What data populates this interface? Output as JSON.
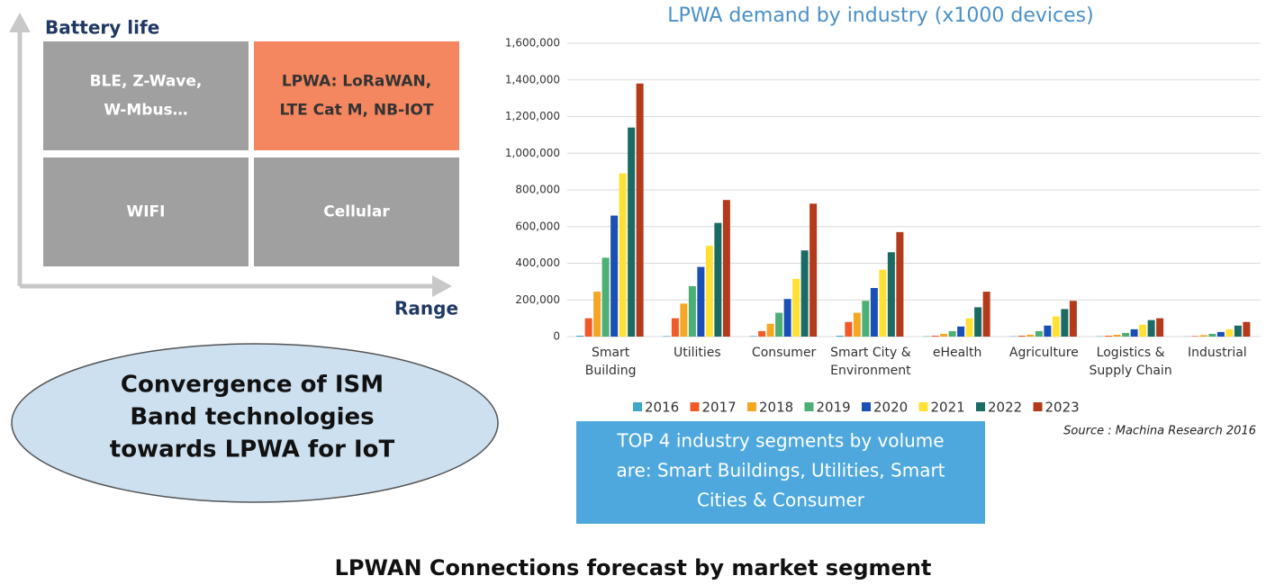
{
  "diagram": {
    "y_axis_label": "Battery life",
    "x_axis_label": "Range",
    "quadrants": [
      {
        "lines": [
          "BLE, Z-Wave,",
          "W-Mbus…"
        ],
        "color": "#a0a0a0"
      },
      {
        "lines": [
          "LPWA:  LoRaWAN,",
          "LTE Cat M, NB-IOT"
        ],
        "color": "#f4875f"
      },
      {
        "lines": [
          "WIFI"
        ],
        "color": "#a0a0a0"
      },
      {
        "lines": [
          "Cellular"
        ],
        "color": "#a0a0a0"
      }
    ]
  },
  "ellipse": {
    "lines": [
      "Convergence of ISM",
      "Band technologies",
      "towards LPWA for IoT"
    ]
  },
  "callout": {
    "lines": [
      "TOP 4 industry segments by volume",
      "are: Smart Buildings, Utilities, Smart",
      "Cities & Consumer"
    ]
  },
  "source": "Source :  Machina Research 2016",
  "caption": "LPWAN Connections forecast by market segment",
  "chart_data": {
    "type": "bar",
    "title": "LPWA demand by industry (x1000 devices)",
    "categories": [
      "Smart Building",
      "Utilities",
      "Consumer",
      "Smart City & Environment",
      "eHealth",
      "Agriculture",
      "Logistics & Supply Chain",
      "Industrial"
    ],
    "series": [
      {
        "name": "2016",
        "color": "#3fa7c9",
        "values": [
          5000,
          3000,
          3000,
          5000,
          2000,
          2000,
          2000,
          1000
        ]
      },
      {
        "name": "2017",
        "color": "#f05a28",
        "values": [
          100000,
          100000,
          30000,
          80000,
          5000,
          5000,
          5000,
          3000
        ]
      },
      {
        "name": "2018",
        "color": "#f5a623",
        "values": [
          245000,
          180000,
          70000,
          130000,
          15000,
          10000,
          10000,
          8000
        ]
      },
      {
        "name": "2019",
        "color": "#4caf73",
        "values": [
          430000,
          275000,
          130000,
          195000,
          30000,
          30000,
          20000,
          15000
        ]
      },
      {
        "name": "2020",
        "color": "#1a4fb5",
        "values": [
          660000,
          380000,
          205000,
          265000,
          55000,
          60000,
          40000,
          25000
        ]
      },
      {
        "name": "2021",
        "color": "#ffe033",
        "values": [
          890000,
          495000,
          315000,
          365000,
          100000,
          110000,
          65000,
          40000
        ]
      },
      {
        "name": "2022",
        "color": "#1a6b63",
        "values": [
          1140000,
          620000,
          470000,
          460000,
          160000,
          150000,
          90000,
          60000
        ]
      },
      {
        "name": "2023",
        "color": "#b33a1a",
        "values": [
          1380000,
          745000,
          725000,
          570000,
          245000,
          195000,
          100000,
          80000
        ]
      }
    ],
    "ylim": [
      0,
      1600000
    ],
    "yticks": [
      0,
      {
        "value": 200000,
        "label": "200,000"
      },
      {
        "value": 400000,
        "label": "400,000"
      },
      {
        "value": 600000,
        "label": "600,000"
      },
      {
        "value": 800000,
        "label": "800,000"
      },
      {
        "value": 1000000,
        "label": "1,000,000"
      },
      {
        "value": 1200000,
        "label": "1,200,000"
      },
      {
        "value": 1400000,
        "label": "1,400,000"
      },
      {
        "value": 1600000,
        "label": "1,600,000"
      }
    ],
    "grid": true
  }
}
